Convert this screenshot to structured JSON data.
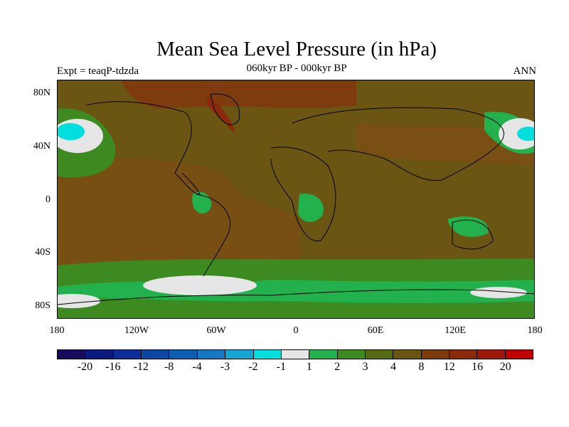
{
  "title": "Mean Sea Level Pressure (in hPa)",
  "experiment": "Expt = teaqP-tdzda",
  "period": "060kyr BP - 000kyr BP",
  "season": "ANN",
  "lat_labels": [
    "80N",
    "40N",
    "0",
    "40S",
    "80S"
  ],
  "lon_labels": [
    "180",
    "120W",
    "60W",
    "0",
    "60E",
    "120E",
    "180"
  ],
  "colorbar": {
    "colors": [
      "#1a0a5e",
      "#0c1a80",
      "#0d2d99",
      "#0c47a6",
      "#0a5fb0",
      "#1478c3",
      "#15a4d4",
      "#00dede",
      "#e6e6e6",
      "#22b14c",
      "#3d8b20",
      "#556b12",
      "#6b5513",
      "#7d3b0e",
      "#8b2a0a",
      "#a0180c",
      "#c00000"
    ],
    "labels": [
      "-20",
      "-16",
      "-12",
      "-8",
      "-4",
      "-3",
      "-2",
      "-1",
      "1",
      "2",
      "3",
      "4",
      "8",
      "12",
      "16",
      "20"
    ]
  }
}
